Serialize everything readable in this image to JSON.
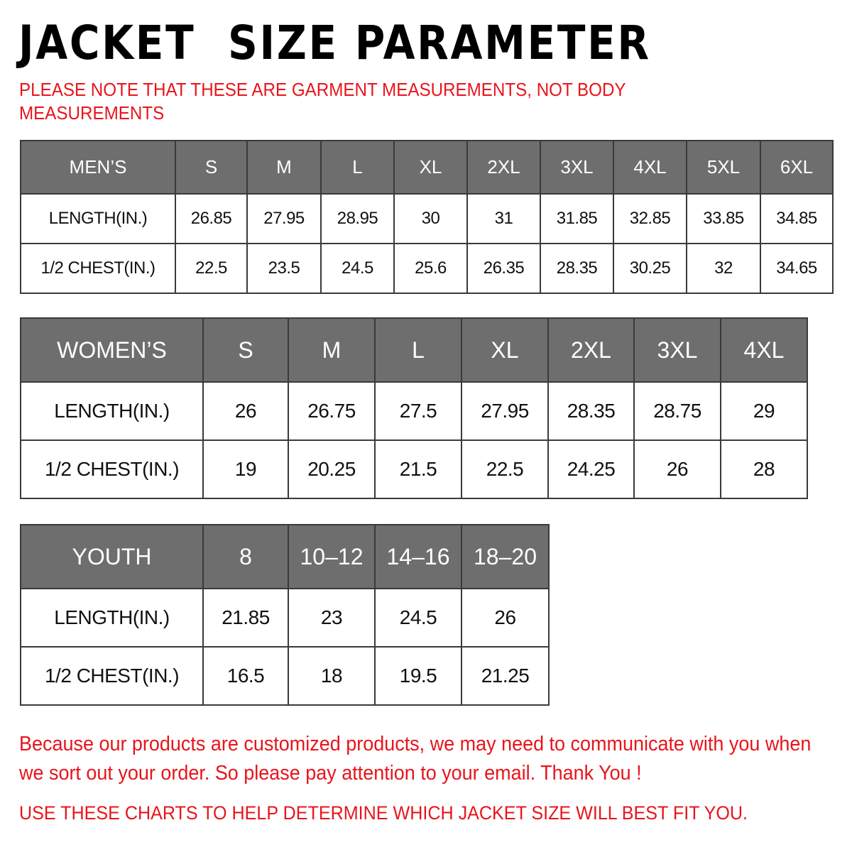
{
  "title": "JACKET  SIZE PARAMETER",
  "note": "PLEASE NOTE THAT THESE ARE GARMENT MEASUREMENTS, NOT BODY MEASUREMENTS",
  "colors": {
    "header_bg": "#6e6e6e",
    "accent_red": "#e8141b"
  },
  "tables": {
    "men": {
      "header": [
        "MEN’S",
        "S",
        "M",
        "L",
        "XL",
        "2XL",
        "3XL",
        "4XL",
        "5XL",
        "6XL"
      ],
      "rows": [
        [
          "LENGTH(IN.)",
          "26.85",
          "27.95",
          "28.95",
          "30",
          "31",
          "31.85",
          "32.85",
          "33.85",
          "34.85"
        ],
        [
          "1/2 CHEST(IN.)",
          "22.5",
          "23.5",
          "24.5",
          "25.6",
          "26.35",
          "28.35",
          "30.25",
          "32",
          "34.65"
        ]
      ]
    },
    "women": {
      "header": [
        "WOMEN’S",
        "S",
        "M",
        "L",
        "XL",
        "2XL",
        "3XL",
        "4XL"
      ],
      "rows": [
        [
          "LENGTH(IN.)",
          "26",
          "26.75",
          "27.5",
          "27.95",
          "28.35",
          "28.75",
          "29"
        ],
        [
          "1/2 CHEST(IN.)",
          "19",
          "20.25",
          "21.5",
          "22.5",
          "24.25",
          "26",
          "28"
        ]
      ]
    },
    "youth": {
      "header": [
        "YOUTH",
        "8",
        "10–12",
        "14–16",
        "18–20"
      ],
      "rows": [
        [
          "LENGTH(IN.)",
          "21.85",
          "23",
          "24.5",
          "26"
        ],
        [
          "1/2 CHEST(IN.)",
          "16.5",
          "18",
          "19.5",
          "21.25"
        ]
      ]
    }
  },
  "message": "Because our products are customized products, we may need to communicate with you when we sort out your order. So please pay attention to your email. Thank You !",
  "footer": "USE THESE CHARTS TO HELP DETERMINE WHICH JACKET SIZE WILL BEST FIT YOU."
}
